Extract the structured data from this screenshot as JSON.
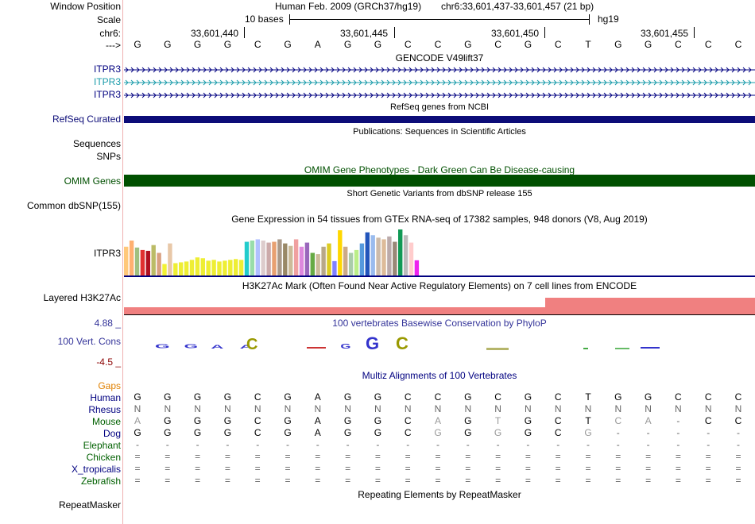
{
  "header": {
    "window_position_label": "Window Position",
    "scale_label": "Scale",
    "chrom_label": "chr6:",
    "strand_label": "--->",
    "assembly_text": "Human Feb. 2009 (GRCh37/hg19)",
    "position_text": "chr6:33,601,437-33,601,457 (21 bp)",
    "scale_text": "10 bases",
    "scale_db": "hg19",
    "coords": [
      "33,601,440",
      "33,601,445",
      "33,601,450",
      "33,601,455"
    ],
    "bases": [
      "G",
      "G",
      "G",
      "G",
      "C",
      "G",
      "A",
      "G",
      "G",
      "C",
      "C",
      "G",
      "C",
      "G",
      "C",
      "T",
      "G",
      "G",
      "C",
      "C",
      "C"
    ]
  },
  "tracks": {
    "gencode": {
      "title": "GENCODE V49lift37",
      "labels": [
        "ITPR3",
        "ITPR3",
        "ITPR3"
      ],
      "colors": [
        "#000080",
        "#1a9baa",
        "#000080"
      ]
    },
    "refseq": {
      "title": "RefSeq genes from NCBI",
      "label": "RefSeq Curated",
      "color": "#0c0c78"
    },
    "pubs": {
      "title": "Publications: Sequences in Scientific Articles",
      "labels": [
        "Sequences",
        "SNPs"
      ]
    },
    "omim": {
      "title": "OMIM Gene Phenotypes - Dark Green Can Be Disease-causing",
      "label": "OMIM Genes",
      "color": "#005000"
    },
    "dbsnp": {
      "title": "Short Genetic Variants from dbSNP release 155",
      "label": "Common dbSNP(155)"
    },
    "gtex": {
      "title": "Gene Expression in 54 tissues from GTEx RNA-seq of 17382 samples, 948 donors (V8, Aug 2019)",
      "label": "ITPR3",
      "values": [
        0.7,
        0.85,
        0.68,
        0.62,
        0.6,
        0.74,
        0.55,
        0.28,
        0.78,
        0.3,
        0.32,
        0.34,
        0.38,
        0.44,
        0.42,
        0.36,
        0.38,
        0.34,
        0.36,
        0.38,
        0.4,
        0.38,
        0.82,
        0.85,
        0.88,
        0.85,
        0.8,
        0.82,
        0.88,
        0.78,
        0.72,
        0.88,
        0.7,
        0.8,
        0.55,
        0.52,
        0.7,
        0.78,
        0.35,
        1.1,
        0.7,
        0.55,
        0.62,
        0.78,
        1.05,
        0.98,
        0.92,
        0.88,
        0.95,
        0.82,
        1.12,
        0.98,
        0.8,
        0.37
      ],
      "colors": [
        "#ffc87a",
        "#ffb070",
        "#a0c080",
        "#e03030",
        "#b01020",
        "#bbbb66",
        "#d9a080",
        "#f2f233",
        "#e8c8a8",
        "#eeee33",
        "#eeee33",
        "#eeee33",
        "#eeee33",
        "#eeee33",
        "#eeee33",
        "#eeee33",
        "#eeee33",
        "#eeee33",
        "#eeee33",
        "#eeee33",
        "#eeee33",
        "#eeee33",
        "#22cccc",
        "#99ddaa",
        "#b0c0ff",
        "#ddcccc",
        "#ccaaaa",
        "#e8a070",
        "#aa9988",
        "#998866",
        "#ccbb99",
        "#f0a0a0",
        "#dd88dd",
        "#9966bb",
        "#66aa44",
        "#ccbb99",
        "#b8a888",
        "#ddcc22",
        "#8080ff",
        "#ffd700",
        "#ccaa88",
        "#aaccaa",
        "#bbee88",
        "#5599dd",
        "#2255bb",
        "#99bbee",
        "#ccbbaa",
        "#ddbb99",
        "#bbaaaa",
        "#998877",
        "#119955",
        "#bbbbbb",
        "#ffcccc",
        "#ee22ee"
      ]
    },
    "h3k27ac": {
      "title": "H3K27Ac Mark (Often Found Near Active Regulatory Elements) on 7 cell lines from ENCODE",
      "label": "Layered H3K27Ac",
      "color": "#f08080"
    },
    "phylop": {
      "title": "100 vertebrates Basewise Conservation by PhyloP",
      "label": "100 Vert. Cons",
      "max": "4.88 _",
      "min": "-4.5 _",
      "logo_color": "#3333cc",
      "logo_gc_color": "#999900"
    },
    "multiz": {
      "title": "Multiz Alignments of 100 Vertebrates",
      "gaps_label": "Gaps",
      "species": [
        {
          "name": "Human",
          "color": "#000080",
          "row": [
            "G",
            "G",
            "G",
            "G",
            "C",
            "G",
            "A",
            "G",
            "G",
            "C",
            "C",
            "G",
            "C",
            "G",
            "C",
            "T",
            "G",
            "G",
            "C",
            "C",
            "C"
          ]
        },
        {
          "name": "Rhesus",
          "color": "#000080",
          "row": [
            "N",
            "N",
            "N",
            "N",
            "N",
            "N",
            "N",
            "N",
            "N",
            "N",
            "N",
            "N",
            "N",
            "N",
            "N",
            "N",
            "N",
            "N",
            "N",
            "N",
            "N"
          ]
        },
        {
          "name": "Mouse",
          "color": "#006000",
          "row": [
            "A",
            "G",
            "G",
            "G",
            "C",
            "G",
            "A",
            "G",
            "G",
            "C",
            "A",
            "G",
            "T",
            "G",
            "C",
            "T",
            "C",
            "A",
            "-",
            "C",
            "C"
          ]
        },
        {
          "name": "Dog",
          "color": "#000080",
          "row": [
            "G",
            "G",
            "G",
            "G",
            "C",
            "G",
            "A",
            "G",
            "G",
            "C",
            "G",
            "G",
            "G",
            "G",
            "C",
            "G",
            "-",
            "-",
            "-",
            "-",
            "-"
          ]
        },
        {
          "name": "Elephant",
          "color": "#006000",
          "row": [
            "-",
            "-",
            "-",
            "-",
            "-",
            "-",
            "-",
            "-",
            "-",
            "-",
            "-",
            "-",
            "-",
            "-",
            "-",
            "-",
            "-",
            "-",
            "-",
            "-",
            "-"
          ]
        },
        {
          "name": "Chicken",
          "color": "#006000",
          "row": [
            "=",
            "=",
            "=",
            "=",
            "=",
            "=",
            "=",
            "=",
            "=",
            "=",
            "=",
            "=",
            "=",
            "=",
            "=",
            "=",
            "=",
            "=",
            "=",
            "=",
            "="
          ]
        },
        {
          "name": "X_tropicalis",
          "color": "#000080",
          "row": [
            "=",
            "=",
            "=",
            "=",
            "=",
            "=",
            "=",
            "=",
            "=",
            "=",
            "=",
            "=",
            "=",
            "=",
            "=",
            "=",
            "=",
            "=",
            "=",
            "=",
            "="
          ]
        },
        {
          "name": "Zebrafish",
          "color": "#006000",
          "row": [
            "=",
            "=",
            "=",
            "=",
            "=",
            "=",
            "=",
            "=",
            "=",
            "=",
            "=",
            "=",
            "=",
            "=",
            "=",
            "=",
            "=",
            "=",
            "=",
            "=",
            "="
          ]
        }
      ]
    },
    "repeatmasker": {
      "title": "Repeating Elements by RepeatMasker",
      "label": "RepeatMasker"
    }
  }
}
